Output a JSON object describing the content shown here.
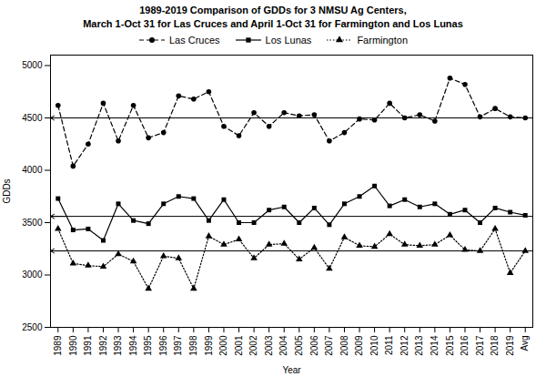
{
  "chart_data": {
    "type": "line",
    "title": "1989-2019 Comparison of GDDs for 3 NMSU Ag Centers,\nMarch 1-Oct 31 for Las Cruces and April 1-Oct 31 for Farmington and Los Lunas",
    "xlabel": "Year",
    "ylabel": "GDDs",
    "ylim": [
      2500,
      5100
    ],
    "yticks": [
      2500,
      3000,
      3500,
      4000,
      4500,
      5000
    ],
    "grid": false,
    "legend": "top",
    "categories": [
      "1989",
      "1990",
      "1991",
      "1992",
      "1993",
      "1994",
      "1995",
      "1996",
      "1997",
      "1998",
      "1999",
      "2000",
      "2001",
      "2002",
      "2003",
      "2004",
      "2005",
      "2006",
      "2007",
      "2008",
      "2009",
      "2010",
      "2011",
      "2012",
      "2013",
      "2014",
      "2015",
      "2016",
      "2017",
      "2018",
      "2019",
      "Avg"
    ],
    "series": [
      {
        "name": "Las Cruces",
        "color": "black",
        "line_style": "dashed",
        "marker": "circle",
        "average": 4500,
        "values": [
          4620,
          4040,
          4250,
          4640,
          4280,
          4620,
          4310,
          4360,
          4710,
          4680,
          4750,
          4420,
          4330,
          4550,
          4420,
          4550,
          4520,
          4530,
          4280,
          4360,
          4490,
          4480,
          4640,
          4500,
          4530,
          4470,
          4880,
          4820,
          4510,
          4590,
          4510,
          4500
        ]
      },
      {
        "name": "Los Lunas",
        "color": "black",
        "line_style": "solid",
        "marker": "square",
        "average": 3560,
        "values": [
          3730,
          3430,
          3440,
          3330,
          3680,
          3520,
          3490,
          3680,
          3750,
          3730,
          3520,
          3720,
          3500,
          3500,
          3620,
          3650,
          3500,
          3640,
          3480,
          3680,
          3750,
          3850,
          3660,
          3720,
          3650,
          3680,
          3580,
          3620,
          3500,
          3640,
          3600,
          3570
        ]
      },
      {
        "name": "Farmington",
        "color": "black",
        "line_style": "dotted",
        "marker": "triangle",
        "average": 3230,
        "values": [
          3440,
          3110,
          3090,
          3080,
          3200,
          3130,
          2870,
          3180,
          3160,
          2870,
          3370,
          3290,
          3340,
          3160,
          3290,
          3300,
          3150,
          3260,
          3060,
          3360,
          3280,
          3270,
          3390,
          3290,
          3280,
          3290,
          3380,
          3240,
          3230,
          3440,
          3020,
          3230
        ]
      }
    ]
  }
}
